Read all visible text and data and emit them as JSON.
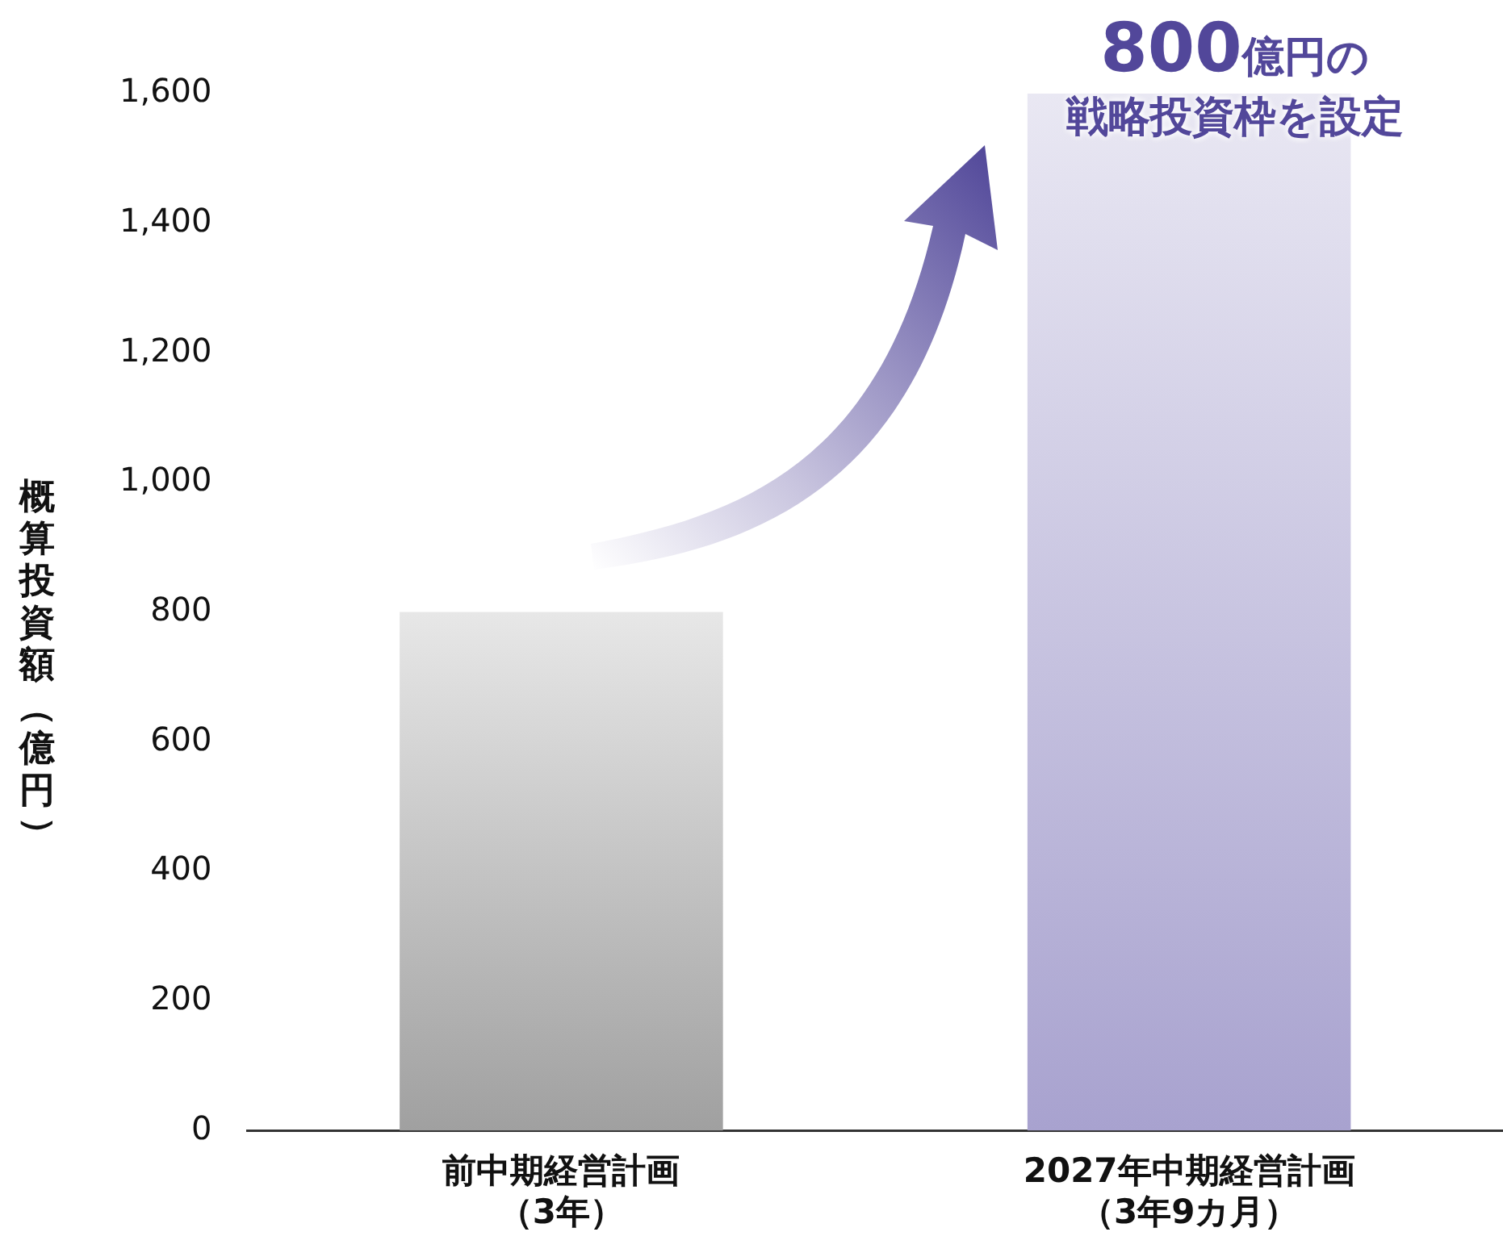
{
  "chart_data": {
    "type": "bar",
    "ylabel": "概算投資額（億円）",
    "categories": [
      "前中期経営計画（3年）",
      "2027年中期経営計画（3年9カ月）"
    ],
    "values": [
      800,
      1600
    ],
    "colors": [
      "#a0a0a0",
      "#a8a2cf"
    ],
    "ylim": [
      0,
      1600
    ],
    "yticks": [
      0,
      {
        "value": 200,
        "label": "200"
      },
      {
        "value": 400,
        "label": "400"
      },
      {
        "value": 600,
        "label": "600"
      },
      {
        "value": 800,
        "label": "800"
      },
      {
        "value": 1000,
        "label": "1,000"
      },
      {
        "value": 1200,
        "label": "1,200"
      },
      {
        "value": 1400,
        "label": "1,400"
      },
      {
        "value": 1600,
        "label": "1,600"
      }
    ],
    "grid": false,
    "legend": false,
    "annotations": [
      "800億円の戦略投資枠を設定"
    ]
  }
}
